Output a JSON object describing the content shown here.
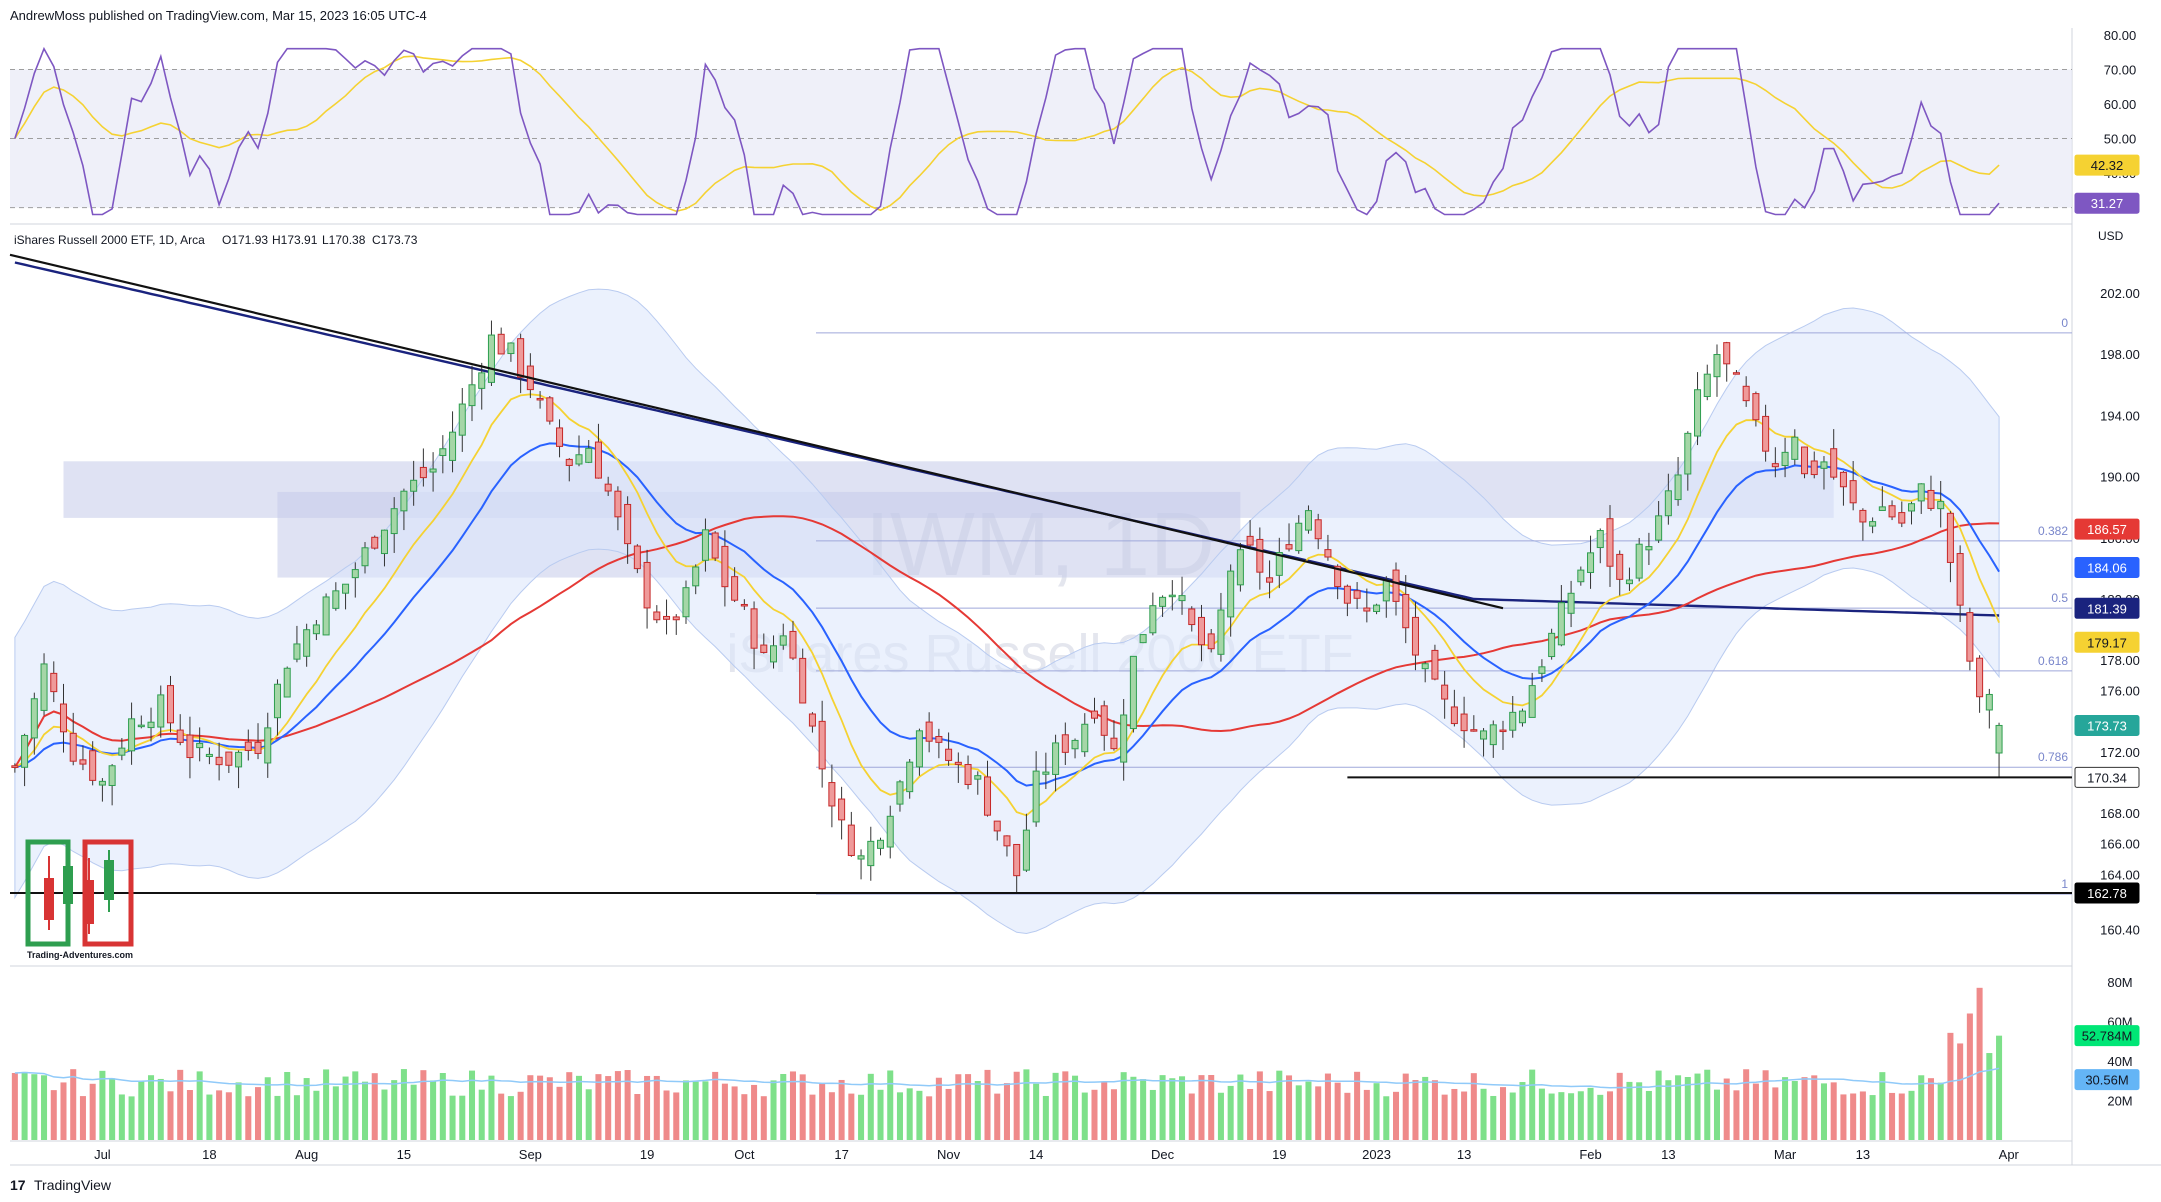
{
  "header": {
    "published": "AndrewMoss published on TradingView.com, Mar 15, 2023 16:05 UTC-4"
  },
  "footer": {
    "brand": "TradingView",
    "logo_text": "17"
  },
  "watermark": {
    "symbol": "IWM, 1D",
    "name": "iShares Russell 2000 ETF"
  },
  "logo": {
    "caption": "Trading-Adventures.com"
  },
  "legend": {
    "instrument": "iShares Russell 2000 ETF, 1D, Arca",
    "o": "O171.93",
    "h": "H173.91",
    "l": "L170.38",
    "c": "C173.73"
  },
  "colors": {
    "up": "#26a69a",
    "down": "#ef5350",
    "vol_up": "#7ee08a",
    "vol_down": "#ef8a8a",
    "ema10": "#f5d232",
    "ema20": "#2962ff",
    "sma50": "#e53935",
    "sma200": "#1a237e",
    "rsi": "#7e57c2",
    "rsi_ma": "#f5d232",
    "fib": "#9fa8da",
    "zone": "#c5cae9"
  },
  "chart_data": [
    {
      "type": "line",
      "panel": "RSI",
      "ylim": [
        27,
        82
      ],
      "yticks": [
        "80.00",
        "70.00",
        "60.00",
        "50.00",
        "40.00"
      ],
      "levels": [
        70,
        50,
        30
      ],
      "last_values": {
        "rsi_ma": "42.32",
        "rsi": "31.27"
      }
    },
    {
      "type": "candlestick",
      "panel": "price",
      "currency": "USD",
      "ylim": [
        158.2,
        205.6
      ],
      "yticks": [
        "202.00",
        "198.00",
        "194.00",
        "190.00",
        "186.00",
        "182.00",
        "178.00",
        "176.00",
        "172.00",
        "168.00",
        "166.00",
        "164.00",
        "160.40"
      ],
      "x_labels": [
        "Jul",
        "18",
        "Aug",
        "15",
        "Sep",
        "19",
        "Oct",
        "17",
        "Nov",
        "14",
        "Dec",
        "19",
        "2023",
        "13",
        "Feb",
        "13",
        "Mar",
        "13",
        "Apr"
      ],
      "last_bar": {
        "open": 171.93,
        "high": 173.91,
        "low": 170.38,
        "close": 173.73
      },
      "price_tags": [
        {
          "label": "186.57",
          "color": "#e53935"
        },
        {
          "label": "184.06",
          "color": "#2962ff"
        },
        {
          "label": "181.39",
          "color": "#1a237e"
        },
        {
          "label": "179.17",
          "color": "#f5d232"
        },
        {
          "label": "173.73",
          "color": "#26a69a"
        },
        {
          "label": "170.34",
          "color": "#ffffff"
        },
        {
          "label": "162.78",
          "color": "#000000"
        }
      ],
      "fib_levels": [
        {
          "label": "0",
          "price": 199.4
        },
        {
          "label": "0.382",
          "price": 185.8
        },
        {
          "label": "0.5",
          "price": 181.4
        },
        {
          "label": "0.618",
          "price": 177.3
        },
        {
          "label": "0.786",
          "price": 171.0
        },
        {
          "label": "1",
          "price": 162.7
        }
      ],
      "horizontal_lines": [
        170.34,
        162.78
      ],
      "trendline": [
        {
          "date": "2022-06-15",
          "price": 204.5
        },
        {
          "date": "2023-01-19",
          "price": 181.4
        }
      ],
      "zone": [
        {
          "from": "2022-06-27",
          "to": "2023-03-08",
          "low": 187.3,
          "high": 191.0
        },
        {
          "from": "2022-07-27",
          "to": "2022-12-13",
          "low": 183.4,
          "high": 189.0
        }
      ],
      "bb_width": 8.5
    },
    {
      "type": "bar",
      "panel": "volume",
      "ylim": [
        0,
        85
      ],
      "yticks": [
        "80M",
        "60M",
        "40M",
        "20M"
      ],
      "last_values": {
        "volume": "52.784M",
        "volume_ma": "30.56M"
      }
    }
  ]
}
